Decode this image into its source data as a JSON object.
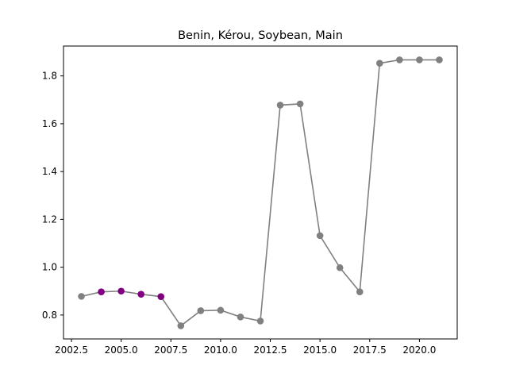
{
  "chart_data": {
    "type": "line",
    "title": "Benin, Kérou, Soybean, Main",
    "xlabel": "",
    "ylabel": "",
    "xlim": [
      2002.1,
      2021.9
    ],
    "ylim": [
      0.7,
      1.925
    ],
    "grid": false,
    "x_ticks": [
      2002.5,
      2005.0,
      2007.5,
      2010.0,
      2012.5,
      2015.0,
      2017.5,
      2020.0
    ],
    "x_tick_labels": [
      "2002.5",
      "2005.0",
      "2007.5",
      "2010.0",
      "2012.5",
      "2015.0",
      "2017.5",
      "2020.0"
    ],
    "y_ticks": [
      0.8,
      1.0,
      1.2,
      1.4,
      1.6,
      1.8
    ],
    "y_tick_labels": [
      "0.8",
      "1.0",
      "1.2",
      "1.4",
      "1.6",
      "1.8"
    ],
    "series": [
      {
        "color": "#808080",
        "x": [
          2003,
          2004,
          2005,
          2006,
          2007,
          2008,
          2009,
          2010,
          2011,
          2012,
          2013,
          2014,
          2015,
          2016,
          2017,
          2018,
          2019,
          2020,
          2021
        ],
        "values": [
          0.878,
          0.897,
          0.9,
          0.887,
          0.877,
          0.755,
          0.818,
          0.82,
          0.792,
          0.775,
          1.678,
          1.683,
          1.132,
          0.998,
          0.897,
          1.853,
          1.867,
          1.867,
          1.867
        ],
        "point_colors": [
          "#808080",
          "#800080",
          "#800080",
          "#800080",
          "#800080",
          "#808080",
          "#808080",
          "#808080",
          "#808080",
          "#808080",
          "#808080",
          "#808080",
          "#808080",
          "#808080",
          "#808080",
          "#808080",
          "#808080",
          "#808080",
          "#808080"
        ]
      }
    ]
  }
}
